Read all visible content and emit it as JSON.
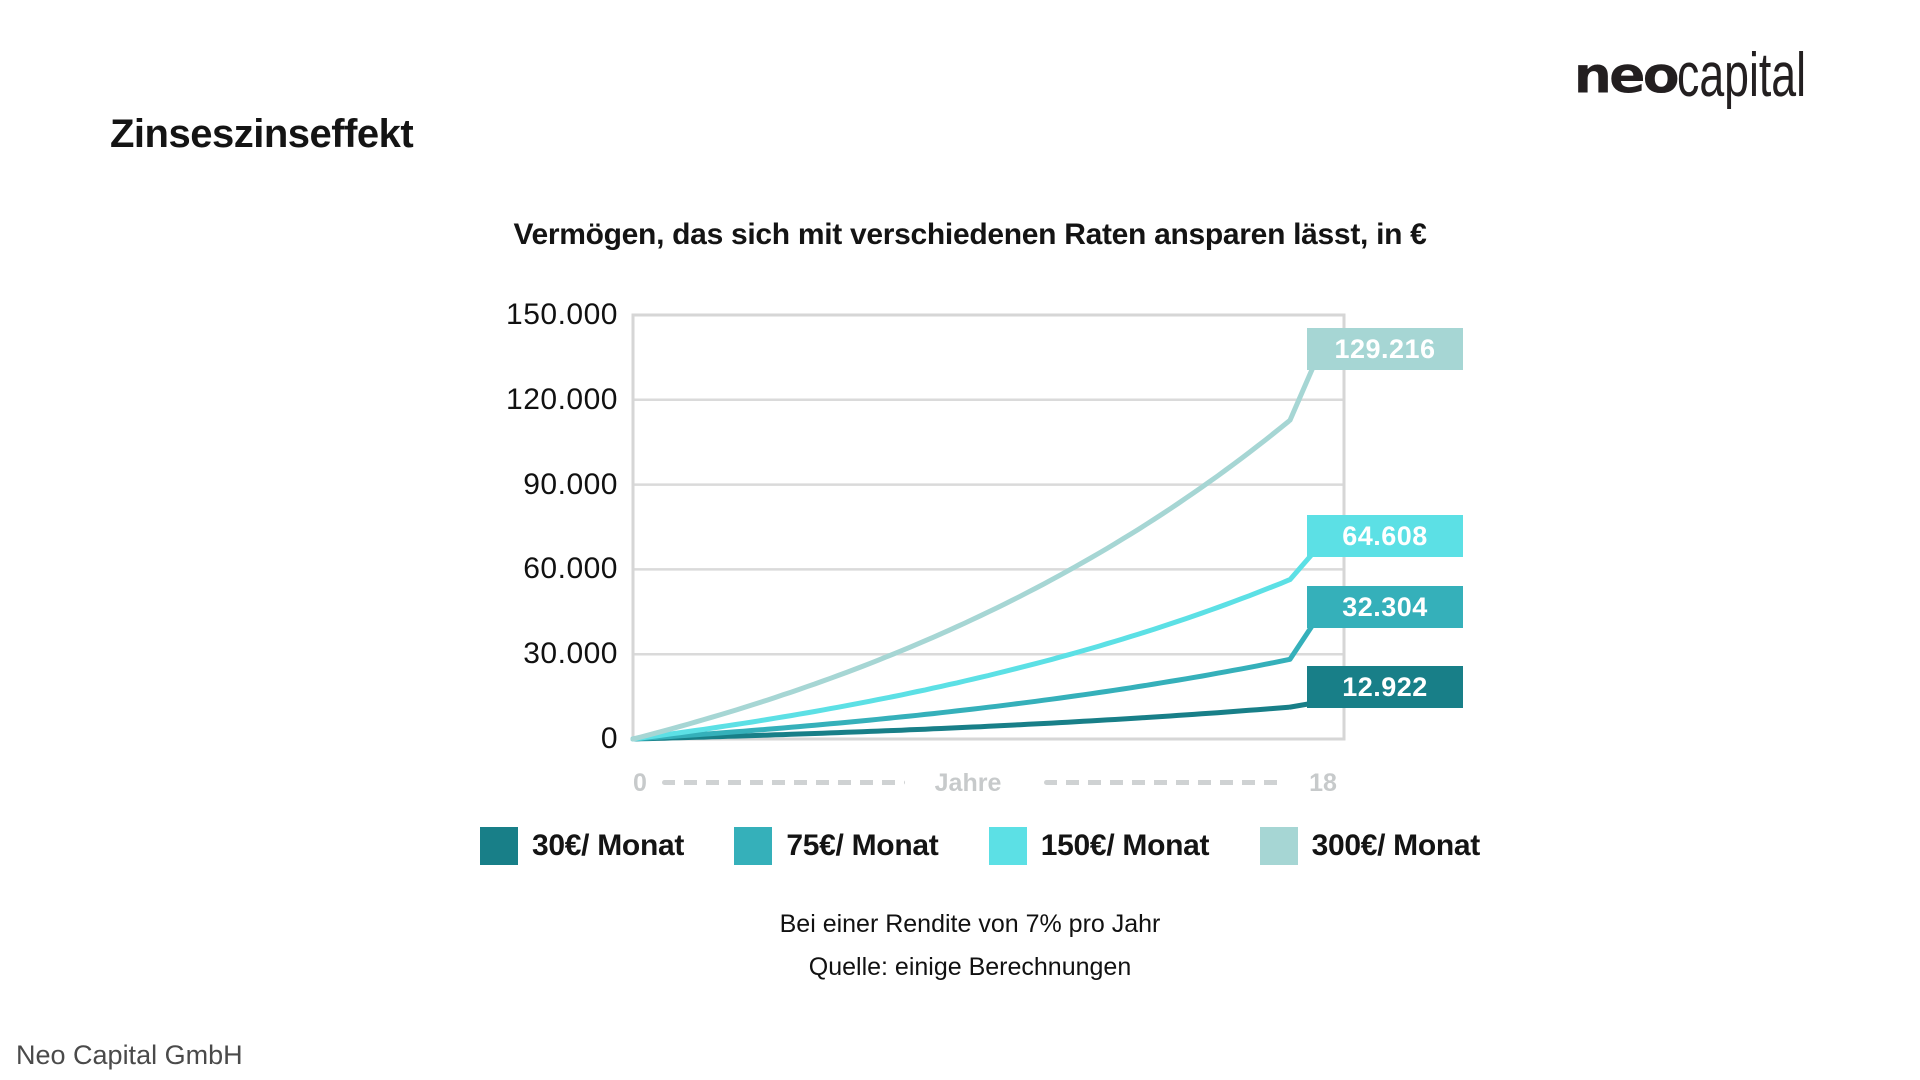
{
  "page": {
    "title": "Zinseszinseffekt",
    "footer": "Neo Capital GmbH",
    "logo": {
      "bold": "neo",
      "light": "capital"
    }
  },
  "chart_data": {
    "type": "line",
    "title": "Vermögen, das sich mit verschiedenen Raten ansparen lässt, in €",
    "xlabel": "Jahre",
    "x_range": [
      0,
      18
    ],
    "x_tick_labels": [
      "0",
      "18"
    ],
    "ylim": [
      0,
      150000
    ],
    "y_tick_interval": 30000,
    "y_tick_labels": [
      "150.000",
      "120.000",
      "90.000",
      "60.000",
      "30.000",
      "0"
    ],
    "grid": "horizontal",
    "legend_position": "bottom",
    "assumed_annual_return_pct": 7,
    "curve_model": "compound interest on monthly savings, 7% p.a., 18 years",
    "series": [
      {
        "name": "30€/ Monat",
        "monthly_rate_eur": 30,
        "final_value": 12922,
        "final_label": "12.922",
        "color": "#187f88"
      },
      {
        "name": "75€/ Monat",
        "monthly_rate_eur": 75,
        "final_value": 32304,
        "final_label": "32.304",
        "color": "#35b0ba"
      },
      {
        "name": "150€/ Monat",
        "monthly_rate_eur": 150,
        "final_value": 64608,
        "final_label": "64.608",
        "color": "#5ce0e5"
      },
      {
        "name": "300€/ Monat",
        "monthly_rate_eur": 300,
        "final_value": 129216,
        "final_label": "129.216",
        "color": "#a6d6d4"
      }
    ],
    "grid_color": "#dadada",
    "axis_text_color": "#c7cacb",
    "notes": [
      "Bei einer Rendite von 7% pro Jahr",
      "Quelle: einige Berechnungen"
    ]
  }
}
